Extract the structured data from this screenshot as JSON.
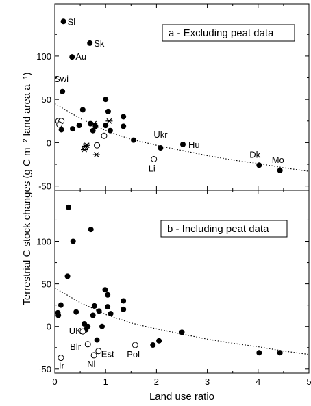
{
  "chart_data": [
    {
      "type": "scatter",
      "panel_label": "a - Excluding peat data",
      "xlabel": "Land use ratio",
      "ylabel": "Terrestrial C stock changes (g C m⁻² land area a⁻¹)",
      "xlim": [
        0,
        5
      ],
      "ylim": [
        -55,
        160
      ],
      "x_ticks": [
        0,
        0.5,
        1,
        1.5,
        2,
        2.5,
        3,
        3.5,
        4,
        4.5,
        5
      ],
      "x_tick_labels": [
        "0",
        "1",
        "2",
        "3",
        "4",
        "5"
      ],
      "y_ticks": [
        -50,
        0,
        50,
        100
      ],
      "y_tick_labels": [
        "-50",
        "0",
        "50",
        "100"
      ],
      "grid": false,
      "series": [
        {
          "marker": "filled-circle",
          "points": [
            {
              "x": 0.17,
              "y": 140,
              "label": "Sl"
            },
            {
              "x": 0.34,
              "y": 99,
              "label": "Au"
            },
            {
              "x": 0.69,
              "y": 115,
              "label": "Sk"
            },
            {
              "x": 0.13,
              "y": 15,
              "label": ""
            },
            {
              "x": 0.15,
              "y": 59,
              "label": "Swi"
            },
            {
              "x": 0.35,
              "y": 16,
              "label": ""
            },
            {
              "x": 0.48,
              "y": 20,
              "label": ""
            },
            {
              "x": 0.55,
              "y": 38,
              "label": ""
            },
            {
              "x": 0.7,
              "y": 22,
              "label": ""
            },
            {
              "x": 0.75,
              "y": 14,
              "label": ""
            },
            {
              "x": 0.8,
              "y": 19,
              "label": ""
            },
            {
              "x": 1.0,
              "y": 50,
              "label": ""
            },
            {
              "x": 1.05,
              "y": 36,
              "label": ""
            },
            {
              "x": 1.0,
              "y": 20,
              "label": ""
            },
            {
              "x": 1.09,
              "y": 14,
              "label": ""
            },
            {
              "x": 1.35,
              "y": 30,
              "label": ""
            },
            {
              "x": 1.35,
              "y": 19,
              "label": ""
            },
            {
              "x": 1.55,
              "y": 3,
              "label": ""
            },
            {
              "x": 2.08,
              "y": -6,
              "label": "Ukr"
            },
            {
              "x": 2.52,
              "y": -2,
              "label": "Hu"
            },
            {
              "x": 4.02,
              "y": -26,
              "label": "Dk"
            },
            {
              "x": 4.43,
              "y": -32,
              "label": "Mo"
            }
          ]
        },
        {
          "marker": "open-circle",
          "points": [
            {
              "x": 0.07,
              "y": 25,
              "label": ""
            },
            {
              "x": 0.13,
              "y": 25,
              "label": ""
            },
            {
              "x": 0.09,
              "y": 21,
              "label": ""
            },
            {
              "x": 0.83,
              "y": -3,
              "label": ""
            },
            {
              "x": 0.97,
              "y": 8,
              "label": ""
            },
            {
              "x": 1.95,
              "y": -19,
              "label": "Li"
            }
          ]
        },
        {
          "marker": "asterisk",
          "points": [
            {
              "x": 0.58,
              "y": -8,
              "label": ""
            },
            {
              "x": 0.63,
              "y": -3,
              "label": ""
            },
            {
              "x": 0.6,
              "y": -4,
              "label": ""
            },
            {
              "x": 0.77,
              "y": 22,
              "label": ""
            },
            {
              "x": 0.82,
              "y": -14,
              "label": ""
            },
            {
              "x": 1.07,
              "y": 25,
              "label": ""
            }
          ]
        }
      ],
      "trend": {
        "style": "dotted",
        "points": [
          [
            0,
            45
          ],
          [
            0.5,
            28
          ],
          [
            1,
            14
          ],
          [
            1.5,
            4
          ],
          [
            2,
            -3
          ],
          [
            2.5,
            -9
          ],
          [
            3,
            -15
          ],
          [
            3.5,
            -20
          ],
          [
            4,
            -24
          ],
          [
            4.5,
            -29
          ],
          [
            5,
            -33
          ]
        ]
      }
    },
    {
      "type": "scatter",
      "panel_label": "b - Including peat data",
      "xlabel": "Land use ratio",
      "ylabel": "Terrestrial C stock changes (g C m⁻² land area a⁻¹)",
      "xlim": [
        0,
        5
      ],
      "ylim": [
        -55,
        160
      ],
      "x_ticks": [
        0,
        0.5,
        1,
        1.5,
        2,
        2.5,
        3,
        3.5,
        4,
        4.5,
        5
      ],
      "x_tick_labels": [
        "0",
        "1",
        "2",
        "3",
        "4",
        "5"
      ],
      "y_ticks": [
        -50,
        0,
        50,
        100
      ],
      "y_tick_labels": [
        "-50",
        "0",
        "50",
        "100"
      ],
      "grid": false,
      "series": [
        {
          "marker": "filled-circle",
          "points": [
            {
              "x": 0.27,
              "y": 140,
              "label": ""
            },
            {
              "x": 0.36,
              "y": 100,
              "label": ""
            },
            {
              "x": 0.71,
              "y": 114,
              "label": ""
            },
            {
              "x": 0.06,
              "y": 16,
              "label": ""
            },
            {
              "x": 0.07,
              "y": 13,
              "label": ""
            },
            {
              "x": 0.12,
              "y": 25,
              "label": ""
            },
            {
              "x": 0.25,
              "y": 59,
              "label": ""
            },
            {
              "x": 0.42,
              "y": 17,
              "label": ""
            },
            {
              "x": 0.58,
              "y": 3,
              "label": ""
            },
            {
              "x": 0.61,
              "y": -4,
              "label": ""
            },
            {
              "x": 0.65,
              "y": 0,
              "label": ""
            },
            {
              "x": 0.75,
              "y": 13,
              "label": ""
            },
            {
              "x": 0.78,
              "y": 24,
              "label": ""
            },
            {
              "x": 0.83,
              "y": -16,
              "label": ""
            },
            {
              "x": 0.87,
              "y": 18,
              "label": ""
            },
            {
              "x": 0.93,
              "y": 0,
              "label": ""
            },
            {
              "x": 0.99,
              "y": 43,
              "label": ""
            },
            {
              "x": 1.04,
              "y": 37,
              "label": ""
            },
            {
              "x": 1.04,
              "y": 23,
              "label": ""
            },
            {
              "x": 1.1,
              "y": 15,
              "label": ""
            },
            {
              "x": 1.35,
              "y": 30,
              "label": ""
            },
            {
              "x": 1.35,
              "y": 20,
              "label": ""
            },
            {
              "x": 1.93,
              "y": -22,
              "label": ""
            },
            {
              "x": 2.05,
              "y": -17,
              "label": ""
            },
            {
              "x": 2.5,
              "y": -7,
              "label": ""
            },
            {
              "x": 4.02,
              "y": -31,
              "label": ""
            },
            {
              "x": 4.43,
              "y": -31,
              "label": ""
            }
          ]
        },
        {
          "marker": "open-circle",
          "points": [
            {
              "x": 0.12,
              "y": -37,
              "label": "Ir"
            },
            {
              "x": 0.55,
              "y": -6,
              "label": "UK"
            },
            {
              "x": 0.65,
              "y": -21,
              "label": "Blr"
            },
            {
              "x": 0.77,
              "y": -34,
              "label": "Nl"
            },
            {
              "x": 0.86,
              "y": -29,
              "label": "Est"
            },
            {
              "x": 1.58,
              "y": -22,
              "label": "Pol"
            }
          ]
        }
      ],
      "trend": {
        "style": "dotted",
        "points": [
          [
            0,
            45
          ],
          [
            0.5,
            28
          ],
          [
            1,
            14
          ],
          [
            1.5,
            4
          ],
          [
            2,
            -3
          ],
          [
            2.5,
            -9
          ],
          [
            3,
            -15
          ],
          [
            3.5,
            -20
          ],
          [
            4,
            -24
          ],
          [
            4.5,
            -29
          ],
          [
            5,
            -33
          ]
        ]
      }
    }
  ]
}
